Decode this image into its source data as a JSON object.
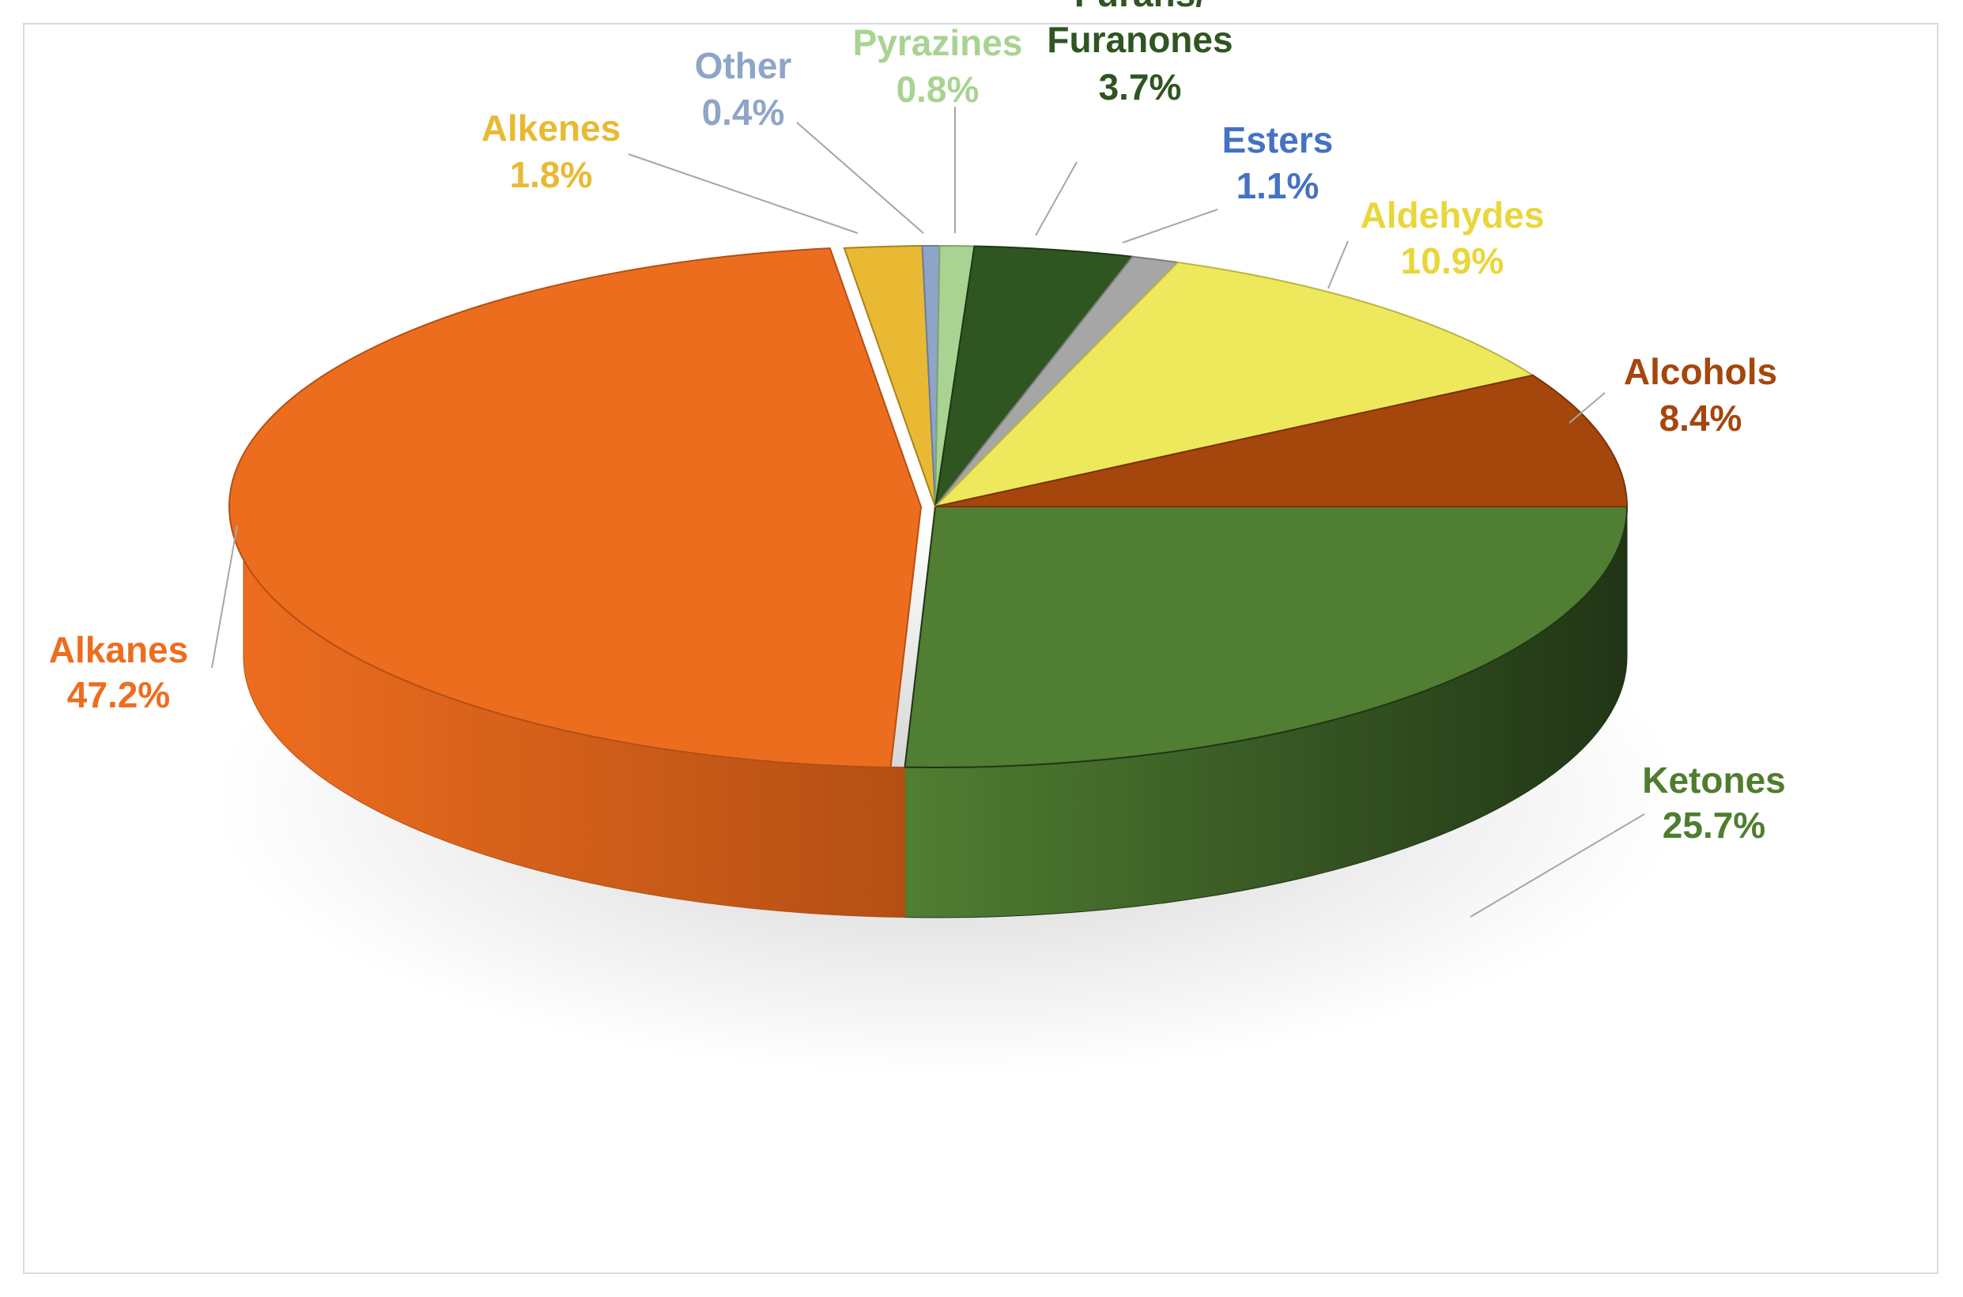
{
  "chart_data": {
    "type": "pie",
    "title": "",
    "legend": "none",
    "slices": [
      {
        "label": "Ketones",
        "value_label": "25.7%",
        "value": 25.7,
        "color": "#507e32",
        "side_color": "#213516",
        "label_color": "#4f7d2f"
      },
      {
        "label": "Alkanes",
        "value_label": "47.2%",
        "value": 47.2,
        "color": "#ed6d1f",
        "side_color": "#b44f14",
        "label_color": "#ed6d1f"
      },
      {
        "label": "Alkenes",
        "value_label": "1.8%",
        "value": 1.8,
        "color": "#e9b934",
        "side_color": "#a8821f",
        "label_color": "#e9b934"
      },
      {
        "label": "Other",
        "value_label": "0.4%",
        "value": 0.4,
        "color": "#8ea5c8",
        "side_color": "#6a7e99",
        "label_color": "#8ea5c8"
      },
      {
        "label": "Pyrazines",
        "value_label": "0.8%",
        "value": 0.8,
        "color": "#a8d392",
        "side_color": "#7ba56a",
        "label_color": "#a8d392"
      },
      {
        "label": "Furans/\nFuranones",
        "value_label": "3.7%",
        "value": 3.7,
        "color": "#2f5521",
        "side_color": "#1e3715",
        "label_color": "#2f5521"
      },
      {
        "label": "Esters",
        "value_label": "1.1%",
        "value": 1.1,
        "color": "#a6a6a6",
        "side_color": "#7a7a7a",
        "label_color": "#4472c4"
      },
      {
        "label": "Aldehydes",
        "value_label": "10.9%",
        "value": 10.9,
        "color": "#eee85d",
        "side_color": "#b9b443",
        "label_color": "#e9d63a"
      },
      {
        "label": "Alcohols",
        "value_label": "8.4%",
        "value": 8.4,
        "color": "#a5460d",
        "side_color": "#7a3309",
        "label_color": "#a5460d"
      }
    ]
  }
}
